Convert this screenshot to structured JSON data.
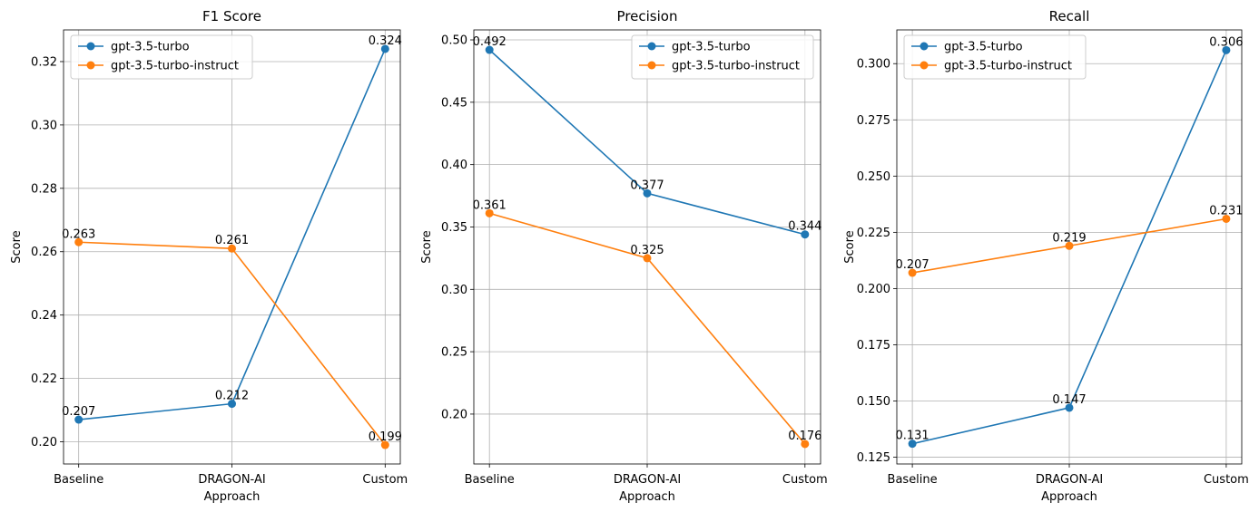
{
  "chart_data": [
    {
      "type": "line",
      "title": "F1 Score",
      "xlabel": "Approach",
      "ylabel": "Score",
      "categories": [
        "Baseline",
        "DRAGON-AI",
        "Custom"
      ],
      "ylim": [
        0.193,
        0.33
      ],
      "yticks": [
        0.2,
        0.22,
        0.24,
        0.26,
        0.28,
        0.3,
        0.32
      ],
      "ytick_labels": [
        "0.20",
        "0.22",
        "0.24",
        "0.26",
        "0.28",
        "0.30",
        "0.32"
      ],
      "grid": true,
      "legend_position": "top-left",
      "series": [
        {
          "name": "gpt-3.5-turbo",
          "color": "#1f77b4",
          "values": [
            0.207,
            0.212,
            0.324
          ],
          "labels": [
            "0.207",
            "0.212",
            "0.324"
          ]
        },
        {
          "name": "gpt-3.5-turbo-instruct",
          "color": "#ff7f0e",
          "values": [
            0.263,
            0.261,
            0.199
          ],
          "labels": [
            "0.263",
            "0.261",
            "0.199"
          ]
        }
      ]
    },
    {
      "type": "line",
      "title": "Precision",
      "xlabel": "Approach",
      "ylabel": "Score",
      "categories": [
        "Baseline",
        "DRAGON-AI",
        "Custom"
      ],
      "ylim": [
        0.16,
        0.508
      ],
      "yticks": [
        0.2,
        0.25,
        0.3,
        0.35,
        0.4,
        0.45,
        0.5
      ],
      "ytick_labels": [
        "0.20",
        "0.25",
        "0.30",
        "0.35",
        "0.40",
        "0.45",
        "0.50"
      ],
      "grid": true,
      "legend_position": "top-right",
      "series": [
        {
          "name": "gpt-3.5-turbo",
          "color": "#1f77b4",
          "values": [
            0.492,
            0.377,
            0.344
          ],
          "labels": [
            "0.492",
            "0.377",
            "0.344"
          ]
        },
        {
          "name": "gpt-3.5-turbo-instruct",
          "color": "#ff7f0e",
          "values": [
            0.361,
            0.325,
            0.176
          ],
          "labels": [
            "0.361",
            "0.325",
            "0.176"
          ]
        }
      ]
    },
    {
      "type": "line",
      "title": "Recall",
      "xlabel": "Approach",
      "ylabel": "Score",
      "categories": [
        "Baseline",
        "DRAGON-AI",
        "Custom"
      ],
      "ylim": [
        0.122,
        0.315
      ],
      "yticks": [
        0.125,
        0.15,
        0.175,
        0.2,
        0.225,
        0.25,
        0.275,
        0.3
      ],
      "ytick_labels": [
        "0.125",
        "0.150",
        "0.175",
        "0.200",
        "0.225",
        "0.250",
        "0.275",
        "0.300"
      ],
      "grid": true,
      "legend_position": "top-left",
      "series": [
        {
          "name": "gpt-3.5-turbo",
          "color": "#1f77b4",
          "values": [
            0.131,
            0.147,
            0.306
          ],
          "labels": [
            "0.131",
            "0.147",
            "0.306"
          ]
        },
        {
          "name": "gpt-3.5-turbo-instruct",
          "color": "#ff7f0e",
          "values": [
            0.207,
            0.219,
            0.231
          ],
          "labels": [
            "0.207",
            "0.219",
            "0.231"
          ]
        }
      ]
    }
  ]
}
